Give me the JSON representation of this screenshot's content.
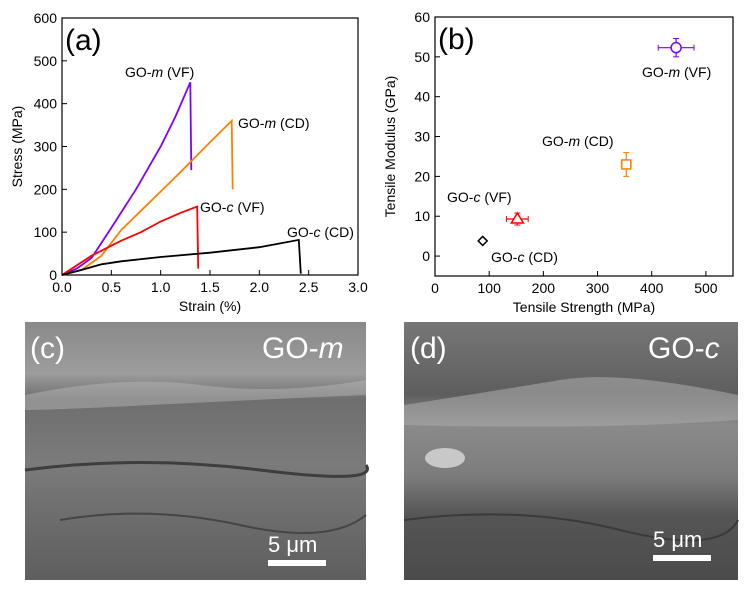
{
  "chart_data": [
    {
      "type": "line",
      "panel_label": "(a)",
      "xlabel": "Strain (%)",
      "ylabel": "Stress (MPa)",
      "xlim": [
        0,
        3.0
      ],
      "ylim": [
        0,
        600
      ],
      "xticks": [
        "0.0",
        "0.5",
        "1.0",
        "1.5",
        "2.0",
        "2.5",
        "3.0"
      ],
      "yticks": [
        "0",
        "100",
        "200",
        "300",
        "400",
        "500",
        "600"
      ],
      "series": [
        {
          "name": "GO-m (VF)",
          "label_prefix": "GO-",
          "label_italic": "m",
          "label_suffix": " (VF)",
          "color": "#8000ff",
          "x": [
            0,
            0.15,
            0.3,
            0.5,
            0.75,
            1.0,
            1.15,
            1.3,
            1.31
          ],
          "y": [
            0,
            15,
            40,
            110,
            200,
            300,
            370,
            450,
            245
          ]
        },
        {
          "name": "GO-m (CD)",
          "label_prefix": "GO-",
          "label_italic": "m",
          "label_suffix": " (CD)",
          "color": "#ff8000",
          "x": [
            0,
            0.2,
            0.4,
            0.6,
            0.8,
            1.0,
            1.2,
            1.5,
            1.72,
            1.73
          ],
          "y": [
            0,
            12,
            45,
            105,
            150,
            195,
            240,
            310,
            360,
            200
          ]
        },
        {
          "name": "GO-c (VF)",
          "label_prefix": "GO-",
          "label_italic": "c",
          "label_suffix": " (VF)",
          "color": "#ff0000",
          "x": [
            0,
            0.3,
            0.6,
            0.8,
            1.0,
            1.2,
            1.37,
            1.38
          ],
          "y": [
            0,
            45,
            80,
            100,
            125,
            145,
            160,
            15
          ]
        },
        {
          "name": "GO-c (CD)",
          "label_prefix": "GO-",
          "label_italic": "c",
          "label_suffix": " (CD)",
          "color": "#000000",
          "x": [
            0,
            0.2,
            0.4,
            0.6,
            1.0,
            1.5,
            2.0,
            2.4,
            2.42
          ],
          "y": [
            0,
            12,
            25,
            32,
            42,
            52,
            65,
            82,
            3
          ]
        }
      ]
    },
    {
      "type": "scatter",
      "panel_label": "(b)",
      "xlabel": "Tensile Strength (MPa)",
      "ylabel": "Tensile Modulus (GPa)",
      "xlim": [
        0,
        550
      ],
      "ylim": [
        -5,
        60
      ],
      "xticks": [
        "0",
        "100",
        "200",
        "300",
        "400",
        "500"
      ],
      "yticks": [
        "0",
        "10",
        "20",
        "30",
        "40",
        "50",
        "60"
      ],
      "points": [
        {
          "name": "GO-m (VF)",
          "label_prefix": "GO-",
          "label_italic": "m",
          "label_suffix": " (VF)",
          "color": "#8000ff",
          "marker": "circle",
          "x": 445,
          "y": 52.3,
          "xerr": 33,
          "yerr": 2.3
        },
        {
          "name": "GO-m (CD)",
          "label_prefix": "GO-",
          "label_italic": "m",
          "label_suffix": " (CD)",
          "color": "#ff8000",
          "marker": "square",
          "x": 353,
          "y": 23,
          "xerr": 9,
          "yerr": 3
        },
        {
          "name": "GO-c (VF)",
          "label_prefix": "GO-",
          "label_italic": "c",
          "label_suffix": " (VF)",
          "color": "#ff0000",
          "marker": "triangle",
          "x": 152,
          "y": 9.3,
          "xerr": 20,
          "yerr": 1.5
        },
        {
          "name": "GO-c (CD)",
          "label_prefix": "GO-",
          "label_italic": "c",
          "label_suffix": " (CD)",
          "color": "#000000",
          "marker": "diamond",
          "x": 88,
          "y": 3.8,
          "xerr": 3,
          "yerr": 0.5
        }
      ]
    }
  ],
  "images": [
    {
      "panel_label": "(c)",
      "title_prefix": "GO-",
      "title_italic": "m",
      "scale_bar": "5 μm"
    },
    {
      "panel_label": "(d)",
      "title_prefix": "GO-",
      "title_italic": "c",
      "scale_bar": "5 μm"
    }
  ]
}
